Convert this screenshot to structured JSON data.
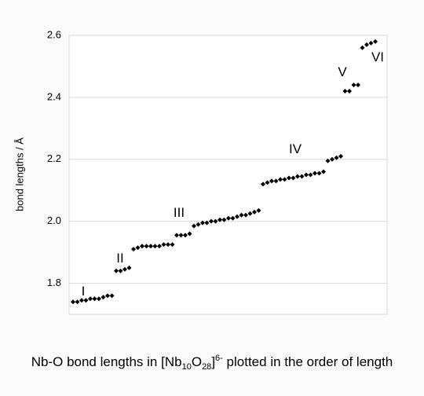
{
  "chart_data": {
    "type": "scatter",
    "y_label": "bond lengths / Å",
    "caption": [
      "Nb-O bond lengths in [Nb",
      "10",
      "O",
      "28",
      "]",
      "6-",
      " plotted in the order of length"
    ],
    "annotations": [
      "I",
      "II",
      "III",
      "IV",
      "V",
      "VI"
    ],
    "color": "#000000",
    "grid": true,
    "ylim": [
      1.7,
      2.6
    ],
    "yticks": [
      1.8,
      {
        "value": 2,
        "label": "2.0"
      },
      2.2,
      2.4,
      2.6
    ],
    "values": [
      1.74,
      1.74,
      1.745,
      1.745,
      1.75,
      1.75,
      1.75,
      1.755,
      1.76,
      1.76,
      1.84,
      1.84,
      1.845,
      1.85,
      1.91,
      1.915,
      1.92,
      1.92,
      1.92,
      1.92,
      1.92,
      1.925,
      1.925,
      1.925,
      1.955,
      1.955,
      1.955,
      1.96,
      1.985,
      1.99,
      1.995,
      1.995,
      2.0,
      2.0,
      2.005,
      2.005,
      2.01,
      2.01,
      2.015,
      2.02,
      2.02,
      2.025,
      2.03,
      2.035,
      2.12,
      2.125,
      2.13,
      2.13,
      2.135,
      2.135,
      2.14,
      2.14,
      2.145,
      2.145,
      2.15,
      2.15,
      2.155,
      2.155,
      2.16,
      2.195,
      2.2,
      2.205,
      2.21,
      2.42,
      2.42,
      2.44,
      2.44,
      2.56,
      2.57,
      2.575,
      2.58
    ]
  }
}
